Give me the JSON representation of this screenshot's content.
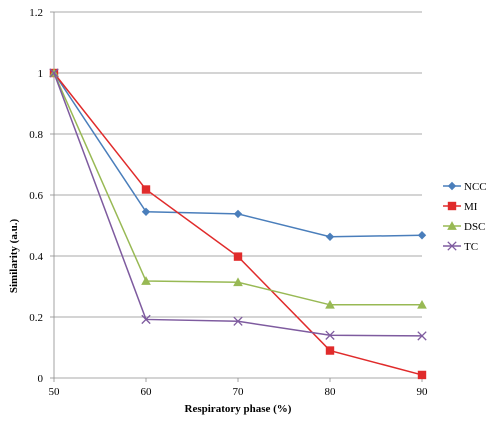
{
  "chart_data": {
    "type": "line",
    "xlabel": "Respiratory phase (%)",
    "ylabel": "Similarity  (a.u.)",
    "x": [
      50,
      60,
      70,
      80,
      90
    ],
    "xlim": [
      50,
      90
    ],
    "ylim": [
      0,
      1.2
    ],
    "x_ticks": [
      "50",
      "60",
      "70",
      "80",
      "90"
    ],
    "y_ticks": [
      "0",
      "0.2",
      "0.4",
      "0.6",
      "0.8",
      "1",
      "1.2"
    ],
    "grid": "horizontal",
    "legend_position": "right",
    "series": [
      {
        "name": "NCC",
        "values": [
          1.0,
          0.545,
          0.538,
          0.463,
          0.468
        ],
        "color": "#4a7ebb",
        "marker": "diamond"
      },
      {
        "name": "MI",
        "values": [
          1.0,
          0.618,
          0.398,
          0.09,
          0.01
        ],
        "color": "#e02b2b",
        "marker": "square"
      },
      {
        "name": "DSC",
        "values": [
          1.0,
          0.318,
          0.314,
          0.24,
          0.24
        ],
        "color": "#98b954",
        "marker": "triangle"
      },
      {
        "name": "TC",
        "values": [
          1.0,
          0.192,
          0.186,
          0.14,
          0.138
        ],
        "color": "#7e5b9f",
        "marker": "x"
      }
    ]
  }
}
